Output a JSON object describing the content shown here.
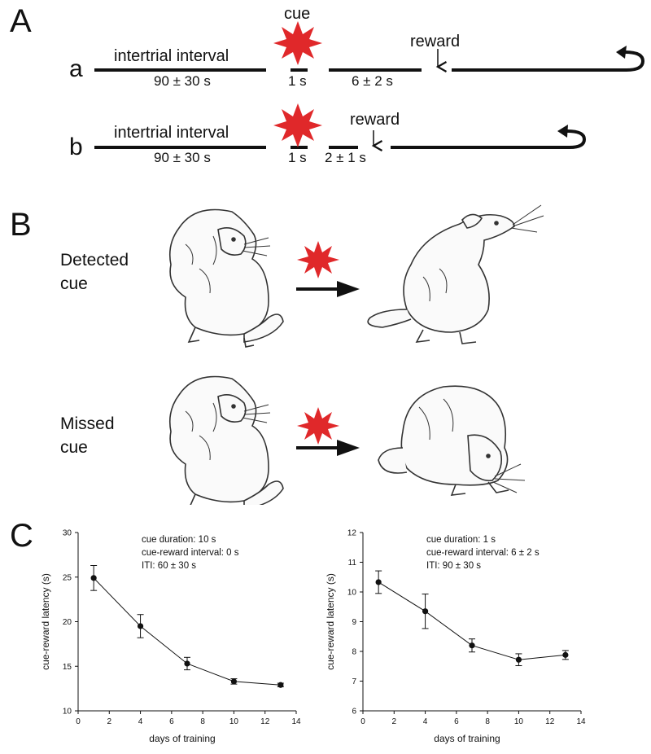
{
  "panels": {
    "a_letter": "A",
    "b_letter": "B",
    "c_letter": "C"
  },
  "timeline": {
    "row_a": {
      "label": "a",
      "iti_title": "intertrial interval",
      "iti_value": "90 ± 30 s",
      "cue_label": "cue",
      "cue_dur": "1 s",
      "delay": "6 ± 2 s",
      "reward": "reward"
    },
    "row_b": {
      "label": "b",
      "iti_title": "intertrial interval",
      "iti_value": "90 ± 30 s",
      "cue_dur": "1 s",
      "delay": "2 ± 1 s",
      "reward": "reward"
    }
  },
  "behavior": {
    "detected_line1": "Detected",
    "detected_line2": "cue",
    "missed_line1": "Missed",
    "missed_line2": "cue"
  },
  "colors": {
    "cue_star": "#e0282a",
    "ink": "#111111"
  },
  "chart_data": [
    {
      "type": "line",
      "xlabel": "days of training",
      "ylabel": "cue-reward latency (s)",
      "xlim": [
        0,
        14
      ],
      "ylim": [
        10,
        30
      ],
      "xticks": [
        0,
        2,
        4,
        6,
        8,
        10,
        12,
        14
      ],
      "yticks": [
        10,
        15,
        20,
        25,
        30
      ],
      "annotation": [
        "cue duration: 10 s",
        "cue-reward interval: 0 s",
        "ITI: 60 ± 30 s"
      ],
      "x": [
        1,
        4,
        7,
        10,
        13
      ],
      "y": [
        24.9,
        19.5,
        15.3,
        13.3,
        12.9
      ],
      "err": [
        1.4,
        1.3,
        0.7,
        0.3,
        0.2
      ]
    },
    {
      "type": "line",
      "xlabel": "days of training",
      "ylabel": "cue-reward latency (s)",
      "xlim": [
        0,
        14
      ],
      "ylim": [
        6,
        12
      ],
      "xticks": [
        0,
        2,
        4,
        6,
        8,
        10,
        12,
        14
      ],
      "yticks": [
        6,
        7,
        8,
        9,
        10,
        11,
        12
      ],
      "annotation": [
        "cue duration: 1 s",
        "cue-reward interval: 6 ± 2 s",
        "ITI: 90 ± 30 s"
      ],
      "x": [
        1,
        4,
        7,
        10,
        13
      ],
      "y": [
        10.33,
        9.35,
        8.2,
        7.72,
        7.88
      ],
      "err": [
        0.38,
        0.58,
        0.22,
        0.2,
        0.15
      ]
    }
  ]
}
